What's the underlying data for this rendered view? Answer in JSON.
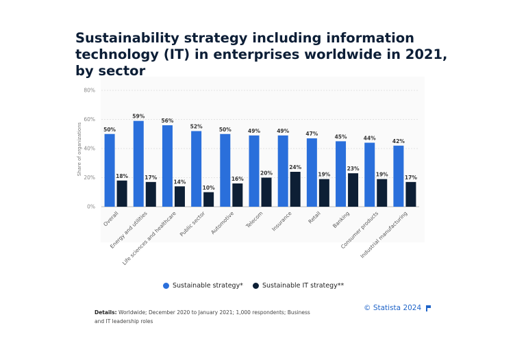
{
  "chart_data": {
    "type": "bar",
    "title": "Sustainability strategy including information technology (IT) in enterprises worldwide in 2021, by sector",
    "xlabel": "",
    "ylabel": "Share of organizations",
    "ylim": [
      0,
      80
    ],
    "yticks": [
      "0%",
      "20%",
      "40%",
      "60%",
      "80%"
    ],
    "grid": true,
    "legend_position": "bottom-center",
    "categories": [
      "Overall",
      "Energy and utilities",
      "Life sciences and healthcare",
      "Public sector",
      "Automotive",
      "Telecom",
      "Insurance",
      "Retail",
      "Banking",
      "Consumer products",
      "Industrial manufacturing"
    ],
    "series": [
      {
        "name": "Sustainable strategy*",
        "color": "#2a6fdb",
        "values": [
          50,
          59,
          56,
          52,
          50,
          49,
          49,
          47,
          45,
          44,
          42
        ],
        "labels": [
          "50%",
          "59%",
          "56%",
          "52%",
          "50%",
          "49%",
          "49%",
          "47%",
          "45%",
          "44%",
          "42%"
        ]
      },
      {
        "name": "Sustainable IT strategy**",
        "color": "#0d1f35",
        "values": [
          18,
          17,
          14,
          10,
          16,
          20,
          24,
          19,
          23,
          19,
          17
        ],
        "labels": [
          "18%",
          "17%",
          "14%",
          "10%",
          "16%",
          "20%",
          "24%",
          "19%",
          "23%",
          "19%",
          "17%"
        ]
      }
    ]
  },
  "details": {
    "label": "Details:",
    "text": "Worldwide; December 2020 to January 2021; 1,000 respondents; Business and IT leadership roles"
  },
  "credit": {
    "text": "© Statista 2024",
    "icon": "flag-icon"
  }
}
